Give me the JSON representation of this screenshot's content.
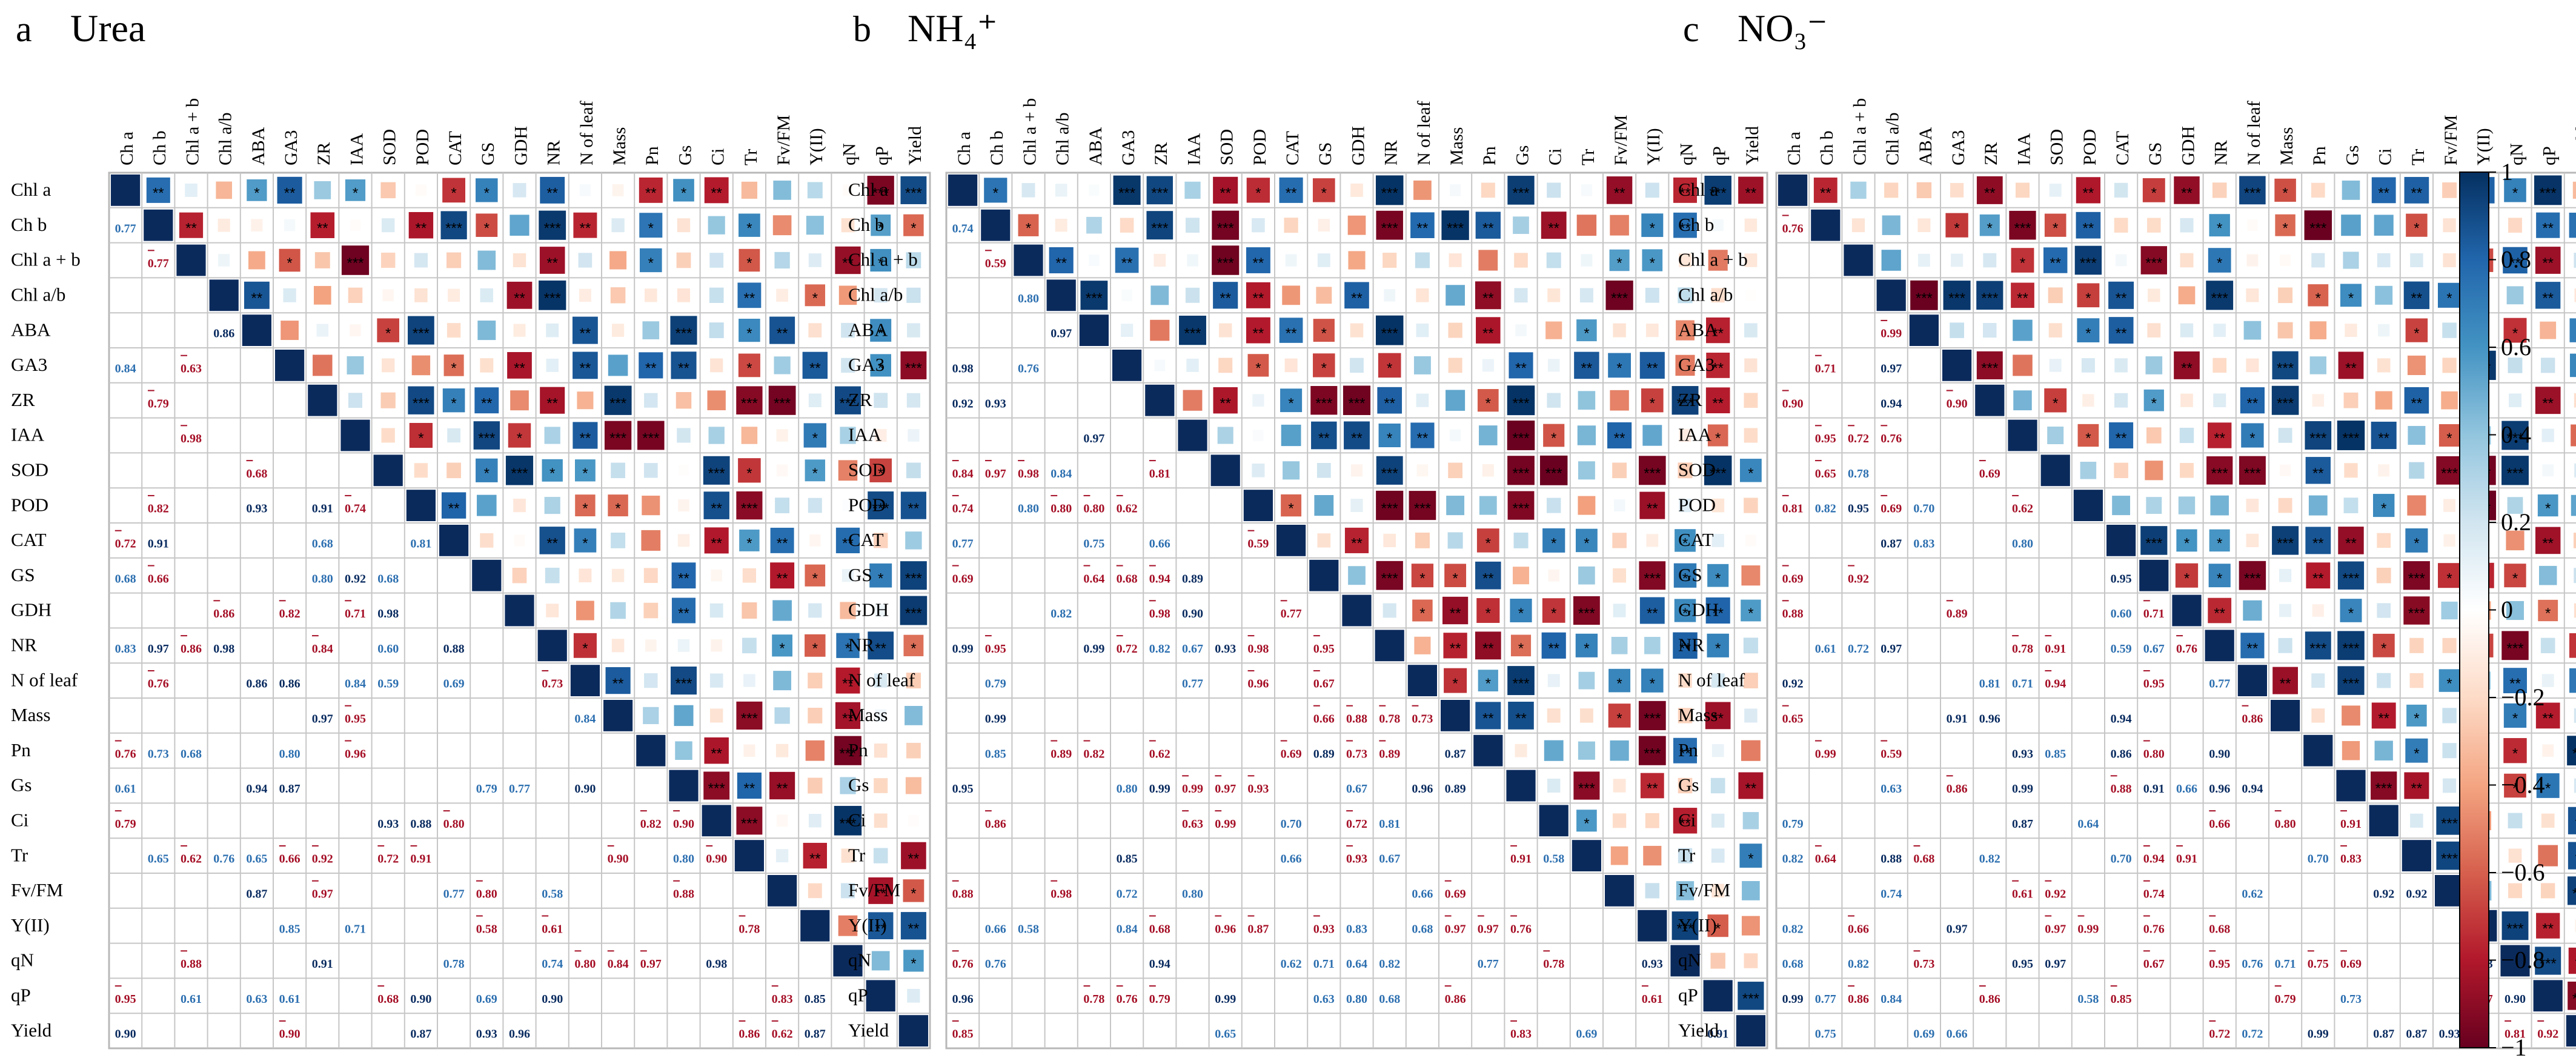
{
  "figure": {
    "panels": [
      {
        "letter": "a",
        "title": "Urea"
      },
      {
        "letter": "b",
        "title": "NH₄⁺"
      },
      {
        "letter": "c",
        "title": "NO₃⁻"
      }
    ]
  },
  "chart_data": {
    "type": "heatmap",
    "subtype": "correlation matrix (upper triangle: colored squares + significance stars; lower triangle: significant r values)",
    "note": "Individual cell values not transcribed; matrices rendered procedurally for visual approximation.",
    "variables": [
      "Chl a",
      "Chl b",
      "Chl a + b",
      "Chl a/b",
      "ABA",
      "GA3",
      "ZR",
      "IAA",
      "SOD",
      "POD",
      "CAT",
      "GS",
      "GDH",
      "NR",
      "N of leaf",
      "Mass",
      "Pn",
      "Gs",
      "Ci",
      "Tr",
      "Fv/FM",
      "Y(II)",
      "qN",
      "qP",
      "Yield"
    ],
    "column_labels": [
      "Ch a",
      "Ch b",
      "Chl a + b",
      "Chl a/b",
      "ABA",
      "GA3",
      "ZR",
      "IAA",
      "SOD",
      "POD",
      "CAT",
      "GS",
      "GDH",
      "NR",
      "N of leaf",
      "Mass",
      "Pn",
      "Gs",
      "Ci",
      "Tr",
      "Fv/FM",
      "Y(II)",
      "qN",
      "qP",
      "Yield"
    ],
    "row_labels": [
      "Chl a",
      "Ch b",
      "Chl a + b",
      "Chl a/b",
      "ABA",
      "GA3",
      "ZR",
      "IAA",
      "SOD",
      "POD",
      "CAT",
      "GS",
      "GDH",
      "NR",
      "N of leaf",
      "Mass",
      "Pn",
      "Gs",
      "Ci",
      "Tr",
      "Fv/FM",
      "Y(II)",
      "qN",
      "qP",
      "Yield"
    ],
    "colorbar": {
      "min": -1,
      "max": 1,
      "ticks": [
        1,
        0.8,
        0.6,
        0.4,
        0.2,
        0,
        -0.2,
        -0.4,
        -0.6,
        -0.8,
        -1
      ],
      "tick_labels": [
        "1",
        "0.8",
        "0.6",
        "0.4",
        "0.2",
        "0",
        "−0.2",
        "−0.4",
        "−0.6",
        "−0.8",
        "−1"
      ],
      "colors": [
        "#67001f",
        "#b2182b",
        "#d6604d",
        "#f4a582",
        "#fddbc7",
        "#ffffff",
        "#d1e5f0",
        "#92c5de",
        "#4393c3",
        "#2166ac",
        "#053061"
      ]
    }
  }
}
